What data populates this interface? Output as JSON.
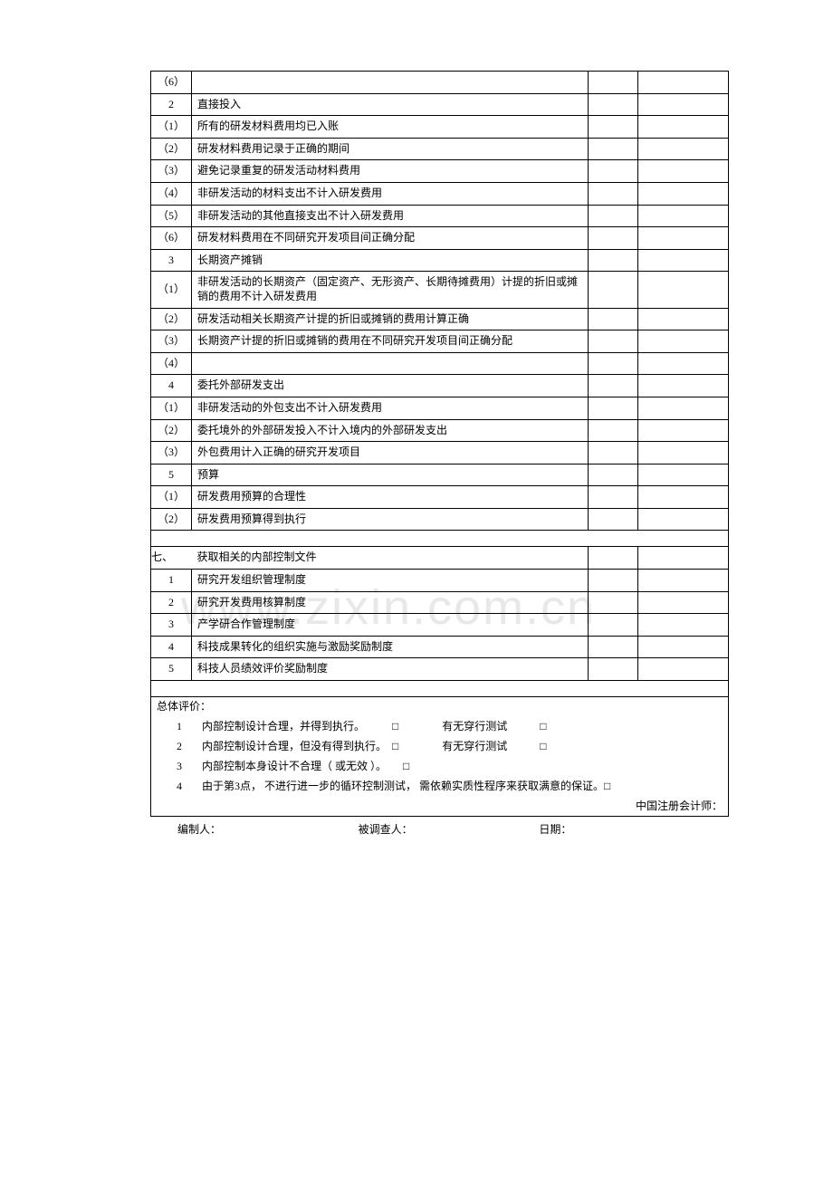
{
  "watermark": "www.zixin.com.cn",
  "rows": [
    {
      "num": "（6）",
      "text": "",
      "c1": "",
      "c2": ""
    },
    {
      "num": "2",
      "text": "直接投入",
      "c1": "",
      "c2": ""
    },
    {
      "num": "（1）",
      "text": "所有的研发材料费用均已入账",
      "c1": "",
      "c2": ""
    },
    {
      "num": "（2）",
      "text": "研发材料费用记录于正确的期间",
      "c1": "",
      "c2": ""
    },
    {
      "num": "（3）",
      "text": "避免记录重复的研发活动材料费用",
      "c1": "",
      "c2": ""
    },
    {
      "num": "（4）",
      "text": "非研发活动的材料支出不计入研发费用",
      "c1": "",
      "c2": ""
    },
    {
      "num": "（5）",
      "text": "非研发活动的其他直接支出不计入研发费用",
      "c1": "",
      "c2": ""
    },
    {
      "num": "（6）",
      "text": "研发材料费用在不同研究开发项目间正确分配",
      "c1": "",
      "c2": ""
    },
    {
      "num": "3",
      "text": "长期资产摊销",
      "c1": "",
      "c2": ""
    },
    {
      "num": "（1）",
      "text": "非研发活动的长期资产（固定资产、无形资产、长期待摊费用）计提的折旧或摊销的费用不计入研发费用",
      "c1": "",
      "c2": ""
    },
    {
      "num": "（2）",
      "text": "研发活动相关长期资产计提的折旧或摊销的费用计算正确",
      "c1": "",
      "c2": ""
    },
    {
      "num": "（3）",
      "text": "长期资产计提的折旧或摊销的费用在不同研究开发项目间正确分配",
      "c1": "",
      "c2": ""
    },
    {
      "num": "（4）",
      "text": "",
      "c1": "",
      "c2": ""
    },
    {
      "num": "4",
      "text": "委托外部研发支出",
      "c1": "",
      "c2": ""
    },
    {
      "num": "（1）",
      "text": "非研发活动的外包支出不计入研发费用",
      "c1": "",
      "c2": ""
    },
    {
      "num": "（2）",
      "text": "委托境外的外部研发投入不计入境内的外部研发支出",
      "c1": "",
      "c2": ""
    },
    {
      "num": "（3）",
      "text": "外包费用计入正确的研究开发项目",
      "c1": "",
      "c2": ""
    },
    {
      "num": "5",
      "text": "预算",
      "c1": "",
      "c2": ""
    },
    {
      "num": "（1）",
      "text": "研发费用预算的合理性",
      "c1": "",
      "c2": ""
    },
    {
      "num": "（2）",
      "text": "研发费用预算得到执行",
      "c1": "",
      "c2": ""
    }
  ],
  "section7": {
    "num": "七、",
    "title": "获取相关的内部控制文件",
    "items": [
      {
        "num": "1",
        "text": "研究开发组织管理制度"
      },
      {
        "num": "2",
        "text": "研究开发费用核算制度"
      },
      {
        "num": "3",
        "text": "产学研合作管理制度"
      },
      {
        "num": "4",
        "text": "科技成果转化的组织实施与激励奖励制度"
      },
      {
        "num": "5",
        "text": "科技人员绩效评价奖励制度"
      }
    ]
  },
  "evaluation": {
    "title": "总体评价：",
    "items": [
      {
        "num": "1",
        "text": "内部控制设计合理，并得到执行。　　　□　　　　有无穿行测试　　　□"
      },
      {
        "num": "2",
        "text": "内部控制设计合理，但没有得到执行。　□　　　　有无穿行测试　　　□"
      },
      {
        "num": "3",
        "text": "内部控制本身设计不合理（ 或无效 ）。　　□"
      },
      {
        "num": "4",
        "text": "由于第3点， 不进行进一步的循环控制测试， 需依赖实质性程序来获取满意的保证。□"
      }
    ],
    "accountant": "中国注册会计师："
  },
  "signature": {
    "preparer": "编制人：",
    "interviewee": "被调查人：",
    "date": "日期："
  }
}
